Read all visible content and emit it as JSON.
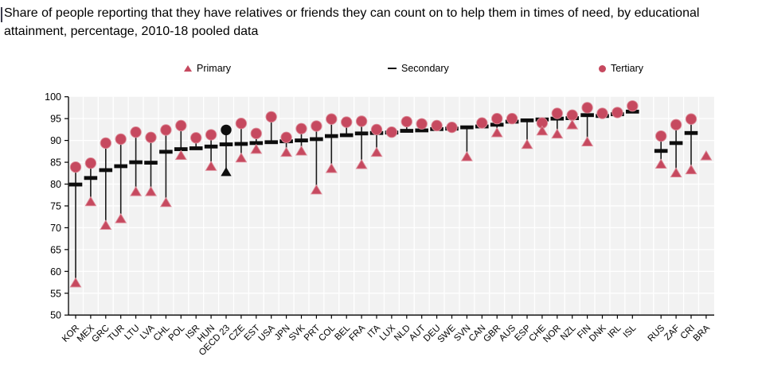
{
  "title": "Share of people reporting that they have relatives or friends they can count on to help them in times of need, by educational attainment, percentage, 2010-18 pooled data",
  "colors": {
    "marker_red": "#c6495f",
    "marker_red_edge": "#dd8a97",
    "marker_black": "#0d0d0d",
    "stem": "#1a1a1a",
    "plot_bg": "#f2f2f2",
    "grid": "#ffffff",
    "axis": "#000000"
  },
  "chart_data": {
    "type": "scatter",
    "subtype": "dot-plot-with-stems",
    "title": "Share of people reporting that they have relatives or friends they can count on to help them in times of need, by educational attainment, percentage, 2010-18 pooled data",
    "xlabel": "",
    "ylabel": "",
    "ylim": [
      50,
      100
    ],
    "yticks": [
      50,
      55,
      60,
      65,
      70,
      75,
      80,
      85,
      90,
      95,
      100
    ],
    "grid": true,
    "legend_position": "top",
    "series_legend": [
      {
        "name": "Primary",
        "marker": "triangle",
        "color": "#c6495f"
      },
      {
        "name": "Secondary",
        "marker": "dash",
        "color": "#0d0d0d"
      },
      {
        "name": "Tertiary",
        "marker": "circle",
        "color": "#c6495f"
      }
    ],
    "highlighted_category": "OECD 23",
    "categories": [
      "KOR",
      "MEX",
      "GRC",
      "TUR",
      "LTU",
      "LVA",
      "CHL",
      "POL",
      "ISR",
      "HUN",
      "OECD 23",
      "CZE",
      "EST",
      "USA",
      "JPN",
      "SVK",
      "PRT",
      "COL",
      "BEL",
      "FRA",
      "ITA",
      "LUX",
      "NLD",
      "AUT",
      "DEU",
      "SWE",
      "SVN",
      "CAN",
      "GBR",
      "AUS",
      "ESP",
      "CHE",
      "NOR",
      "NZL",
      "FIN",
      "DNK",
      "IRL",
      "ISL",
      "RUS",
      "ZAF",
      "CRI",
      "BRA"
    ],
    "points": [
      {
        "code": "KOR",
        "primary": 57.4,
        "secondary": 79.9,
        "tertiary": 83.9
      },
      {
        "code": "MEX",
        "primary": 76.0,
        "secondary": 81.4,
        "tertiary": 84.8
      },
      {
        "code": "GRC",
        "primary": 70.6,
        "secondary": 83.2,
        "tertiary": 89.4
      },
      {
        "code": "TUR",
        "primary": 72.1,
        "secondary": 84.1,
        "tertiary": 90.3
      },
      {
        "code": "LTU",
        "primary": 78.3,
        "secondary": 85.0,
        "tertiary": 91.9
      },
      {
        "code": "LVA",
        "primary": 78.3,
        "secondary": 84.9,
        "tertiary": 90.7
      },
      {
        "code": "CHL",
        "primary": 75.8,
        "secondary": 87.4,
        "tertiary": 92.4
      },
      {
        "code": "POL",
        "primary": 86.6,
        "secondary": 88.0,
        "tertiary": 93.4
      },
      {
        "code": "ISR",
        "primary": null,
        "secondary": 88.2,
        "tertiary": 90.6
      },
      {
        "code": "HUN",
        "primary": 84.1,
        "secondary": 88.6,
        "tertiary": 91.3
      },
      {
        "code": "OECD 23",
        "primary": 82.8,
        "secondary": 89.1,
        "tertiary": 92.4,
        "highlight": true
      },
      {
        "code": "CZE",
        "primary": 86.0,
        "secondary": 89.2,
        "tertiary": 93.9
      },
      {
        "code": "EST",
        "primary": 88.0,
        "secondary": 89.4,
        "tertiary": 91.6
      },
      {
        "code": "USA",
        "primary": null,
        "secondary": 89.6,
        "tertiary": 95.4
      },
      {
        "code": "JPN",
        "primary": 87.3,
        "secondary": 89.8,
        "tertiary": 90.7
      },
      {
        "code": "SVK",
        "primary": 87.6,
        "secondary": 90.0,
        "tertiary": 92.7
      },
      {
        "code": "PRT",
        "primary": 78.7,
        "secondary": 90.3,
        "tertiary": 93.3
      },
      {
        "code": "COL",
        "primary": 83.6,
        "secondary": 91.0,
        "tertiary": 94.9
      },
      {
        "code": "BEL",
        "primary": null,
        "secondary": 91.2,
        "tertiary": 94.2
      },
      {
        "code": "FRA",
        "primary": 84.5,
        "secondary": 91.6,
        "tertiary": 94.4
      },
      {
        "code": "ITA",
        "primary": 87.3,
        "secondary": 91.7,
        "tertiary": 92.5
      },
      {
        "code": "LUX",
        "primary": null,
        "secondary": 91.8,
        "tertiary": 91.9
      },
      {
        "code": "NLD",
        "primary": null,
        "secondary": 92.2,
        "tertiary": 94.3
      },
      {
        "code": "AUT",
        "primary": null,
        "secondary": 92.3,
        "tertiary": 93.8
      },
      {
        "code": "DEU",
        "primary": null,
        "secondary": 92.6,
        "tertiary": 93.4
      },
      {
        "code": "SWE",
        "primary": null,
        "secondary": 92.7,
        "tertiary": 93.0
      },
      {
        "code": "SVN",
        "primary": 86.3,
        "secondary": 93.0,
        "tertiary": null
      },
      {
        "code": "CAN",
        "primary": null,
        "secondary": 93.2,
        "tertiary": 94.0
      },
      {
        "code": "GBR",
        "primary": 91.8,
        "secondary": 93.6,
        "tertiary": 95.0
      },
      {
        "code": "AUS",
        "primary": null,
        "secondary": 94.3,
        "tertiary": 95.0
      },
      {
        "code": "ESP",
        "primary": 89.1,
        "secondary": 94.6,
        "tertiary": null
      },
      {
        "code": "CHE",
        "primary": 92.2,
        "secondary": 94.8,
        "tertiary": 94.0
      },
      {
        "code": "NOR",
        "primary": 91.5,
        "secondary": 95.0,
        "tertiary": 96.2
      },
      {
        "code": "NZL",
        "primary": 93.6,
        "secondary": 95.1,
        "tertiary": 95.8
      },
      {
        "code": "FIN",
        "primary": 89.7,
        "secondary": 95.8,
        "tertiary": 97.5
      },
      {
        "code": "DNK",
        "primary": null,
        "secondary": 95.6,
        "tertiary": 96.2
      },
      {
        "code": "IRL",
        "primary": null,
        "secondary": 96.0,
        "tertiary": 96.4
      },
      {
        "code": "ISL",
        "primary": null,
        "secondary": 96.6,
        "tertiary": 97.9
      },
      {
        "code": "RUS",
        "primary": 84.6,
        "secondary": 87.6,
        "tertiary": 91.0,
        "gap_before": true
      },
      {
        "code": "ZAF",
        "primary": 82.6,
        "secondary": 89.4,
        "tertiary": 93.6
      },
      {
        "code": "CRI",
        "primary": 83.3,
        "secondary": 91.7,
        "tertiary": 94.9
      },
      {
        "code": "BRA",
        "primary": 86.5,
        "secondary": null,
        "tertiary": null
      }
    ]
  }
}
